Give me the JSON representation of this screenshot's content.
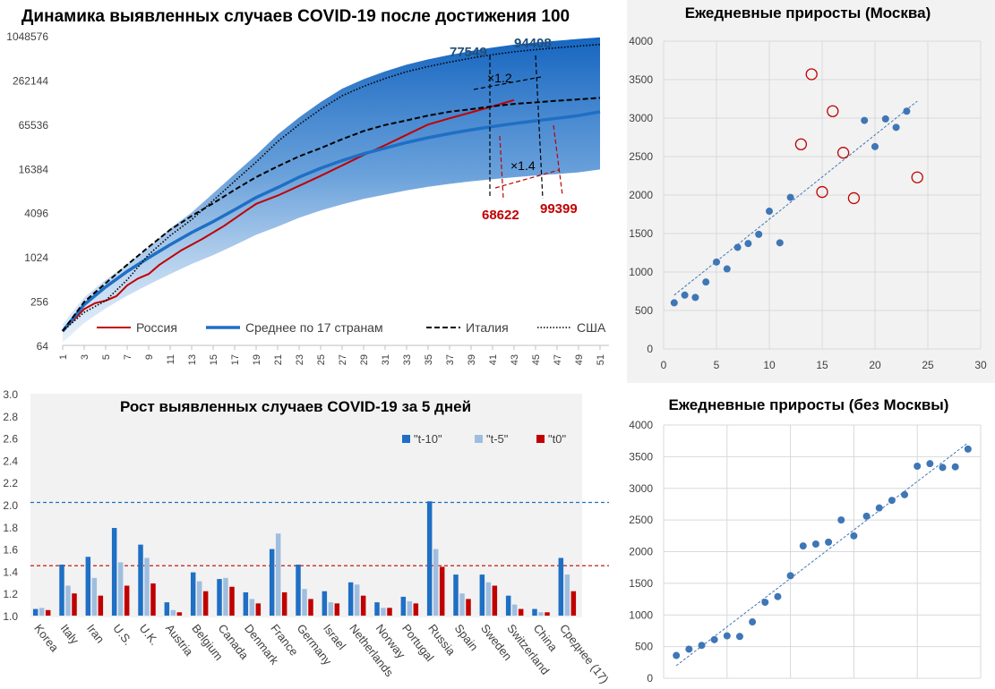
{
  "chart_data": [
    {
      "id": "dynamics",
      "type": "line",
      "title": "Динамика выявленных случаев COVID-19 после достижения 100",
      "y_scale": "log2",
      "yticks": [
        "64",
        "256",
        "1024",
        "4096",
        "16384",
        "65536",
        "262144",
        "1048576"
      ],
      "xticks": [
        "1",
        "3",
        "5",
        "7",
        "9",
        "11",
        "13",
        "15",
        "17",
        "19",
        "21",
        "23",
        "25",
        "27",
        "29",
        "31",
        "33",
        "35",
        "37",
        "39",
        "41",
        "43",
        "45",
        "47",
        "49",
        "51"
      ],
      "xlim": [
        1,
        51
      ],
      "ylim": [
        64,
        1048576
      ],
      "band_color": "#1f6fc4",
      "series": [
        {
          "name": "Россия",
          "color": "#c00000",
          "style": "solid",
          "x": [
            1,
            3,
            4,
            5,
            6,
            7,
            8,
            9,
            10,
            12,
            14,
            16,
            17,
            18,
            19,
            21,
            23,
            25,
            27,
            29,
            31,
            33,
            35,
            37,
            39,
            41,
            43
          ],
          "y": [
            100,
            200,
            240,
            260,
            300,
            420,
            520,
            600,
            800,
            1250,
            1800,
            2700,
            3400,
            4300,
            5400,
            7000,
            9500,
            13000,
            18000,
            25000,
            34000,
            47000,
            65000,
            79000,
            95000,
            115000,
            140000
          ]
        },
        {
          "name": "Среднее по 17 странам",
          "color": "#1f6fc4",
          "style": "solid-thick",
          "x": [
            1,
            3,
            5,
            7,
            9,
            11,
            13,
            15,
            17,
            19,
            21,
            23,
            25,
            27,
            29,
            31,
            33,
            35,
            37,
            39,
            41,
            43,
            45,
            47,
            49,
            51
          ],
          "y": [
            100,
            230,
            400,
            650,
            1000,
            1500,
            2200,
            3100,
            4500,
            6600,
            9000,
            12500,
            16500,
            21000,
            26000,
            31000,
            37000,
            43000,
            49000,
            55000,
            61000,
            67000,
            73000,
            79000,
            86000,
            97000
          ]
        },
        {
          "name": "Италия",
          "color": "#000000",
          "style": "dashed",
          "x": [
            1,
            3,
            5,
            7,
            9,
            11,
            13,
            15,
            17,
            19,
            21,
            23,
            25,
            27,
            29,
            31,
            33,
            35,
            37,
            39,
            41,
            43,
            45,
            47,
            49,
            51
          ],
          "y": [
            100,
            250,
            450,
            800,
            1400,
            2400,
            3700,
            5500,
            8400,
            12500,
            17500,
            24000,
            31000,
            41000,
            53000,
            64000,
            74000,
            86000,
            97000,
            105000,
            115000,
            124000,
            130000,
            137000,
            143000,
            150000
          ]
        },
        {
          "name": "США",
          "color": "#000000",
          "style": "dotted",
          "x": [
            1,
            3,
            5,
            7,
            9,
            11,
            13,
            15,
            17,
            19,
            21,
            23,
            25,
            27,
            29,
            31,
            33,
            35,
            37,
            39,
            41,
            43,
            45,
            47,
            49,
            51
          ],
          "y": [
            100,
            180,
            260,
            500,
            1100,
            2000,
            3300,
            6000,
            11000,
            20000,
            38000,
            65000,
            105000,
            160000,
            215000,
            275000,
            340000,
            400000,
            460000,
            520000,
            580000,
            635000,
            680000,
            720000,
            760000,
            800000
          ]
        }
      ],
      "annotations": [
        {
          "text": "77549",
          "color": "#1f4e79"
        },
        {
          "text": "94408",
          "color": "#1f4e79"
        },
        {
          "text": "×1.2",
          "color": "#000000"
        },
        {
          "text": "×1.4",
          "color": "#000000"
        },
        {
          "text": "68622",
          "color": "#c00000"
        },
        {
          "text": "99399",
          "color": "#c00000"
        }
      ],
      "legend": "bottom-inside"
    },
    {
      "id": "moscow",
      "type": "scatter",
      "title": "Ежедневные приросты (Москва)",
      "xlim": [
        0,
        30
      ],
      "ylim": [
        0,
        4000
      ],
      "xticks": [
        "0",
        "5",
        "10",
        "15",
        "20",
        "25",
        "30"
      ],
      "yticks": [
        "0",
        "500",
        "1000",
        "1500",
        "2000",
        "2500",
        "3000",
        "3500",
        "4000"
      ],
      "point_color": "#3f76b6",
      "outlier_color": "#c00000",
      "points": [
        [
          1,
          600
        ],
        [
          2,
          700
        ],
        [
          3,
          670
        ],
        [
          4,
          870
        ],
        [
          5,
          1130
        ],
        [
          6,
          1040
        ],
        [
          7,
          1320
        ],
        [
          8,
          1370
        ],
        [
          9,
          1490
        ],
        [
          10,
          1790
        ],
        [
          11,
          1380
        ],
        [
          12,
          1970
        ],
        [
          19,
          2970
        ],
        [
          20,
          2630
        ],
        [
          21,
          2990
        ],
        [
          22,
          2880
        ],
        [
          23,
          3090
        ]
      ],
      "outliers": [
        [
          13,
          2660
        ],
        [
          14,
          3570
        ],
        [
          15,
          2040
        ],
        [
          16,
          3090
        ],
        [
          17,
          2550
        ],
        [
          18,
          1960
        ],
        [
          24,
          2230
        ]
      ],
      "trend": [
        [
          1,
          700
        ],
        [
          24,
          3220
        ]
      ]
    },
    {
      "id": "growth5",
      "type": "bar",
      "title": "Рост выявленных случаев COVID-19 за 5 дней",
      "ylim": [
        1.0,
        3.0
      ],
      "yticks": [
        "1.0",
        "1.2",
        "1.4",
        "1.6",
        "1.8",
        "2.0",
        "2.2",
        "2.4",
        "2.6",
        "2.8",
        "3.0"
      ],
      "categories": [
        "Korea",
        "Italy",
        "Iran",
        "U.S.",
        "U.K.",
        "Austria",
        "Belgium",
        "Canada",
        "Denmark",
        "France",
        "Germany",
        "Israel",
        "Netherlands",
        "Norway",
        "Portugal",
        "Russia",
        "Spain",
        "Sweden",
        "Switzerland",
        "China",
        "Среднее (17)"
      ],
      "series": [
        {
          "name": "\"t-10\"",
          "color": "#1f6fc4",
          "values": [
            1.06,
            1.46,
            1.53,
            1.79,
            1.64,
            1.12,
            1.39,
            1.33,
            1.21,
            1.6,
            1.46,
            1.22,
            1.3,
            1.12,
            1.17,
            2.03,
            1.37,
            1.37,
            1.18,
            1.06,
            1.52
          ]
        },
        {
          "name": "\"t-5\"",
          "color": "#9fbedf",
          "values": [
            1.07,
            1.27,
            1.34,
            1.48,
            1.52,
            1.05,
            1.31,
            1.34,
            1.15,
            1.74,
            1.24,
            1.12,
            1.28,
            1.07,
            1.13,
            1.6,
            1.2,
            1.3,
            1.1,
            1.03,
            1.37
          ]
        },
        {
          "name": "\"t0\"",
          "color": "#c00000",
          "values": [
            1.05,
            1.2,
            1.18,
            1.27,
            1.29,
            1.03,
            1.22,
            1.26,
            1.11,
            1.21,
            1.15,
            1.11,
            1.18,
            1.07,
            1.11,
            1.44,
            1.15,
            1.27,
            1.06,
            1.03,
            1.22
          ]
        }
      ],
      "reference_lines": [
        {
          "value": 2.02,
          "color": "#1f6fc4"
        },
        {
          "value": 1.45,
          "color": "#c00000"
        }
      ],
      "legend": "top-right"
    },
    {
      "id": "no_moscow",
      "type": "scatter",
      "title": "Ежедневные приросты (без Москвы)",
      "ylim": [
        0,
        4000
      ],
      "yticks": [
        "0",
        "500",
        "1000",
        "1500",
        "2000",
        "2500",
        "3000",
        "3500",
        "4000"
      ],
      "x_grid_count": 5,
      "point_color": "#3f76b6",
      "points": [
        [
          1,
          360
        ],
        [
          2,
          460
        ],
        [
          3,
          520
        ],
        [
          4,
          610
        ],
        [
          5,
          670
        ],
        [
          6,
          660
        ],
        [
          7,
          890
        ],
        [
          8,
          1200
        ],
        [
          9,
          1290
        ],
        [
          10,
          1620
        ],
        [
          11,
          2090
        ],
        [
          12,
          2120
        ],
        [
          13,
          2150
        ],
        [
          14,
          2500
        ],
        [
          15,
          2250
        ],
        [
          16,
          2560
        ],
        [
          17,
          2690
        ],
        [
          18,
          2810
        ],
        [
          19,
          2900
        ],
        [
          20,
          3350
        ],
        [
          21,
          3390
        ],
        [
          22,
          3330
        ],
        [
          23,
          3340
        ],
        [
          24,
          3620
        ]
      ],
      "trend": [
        [
          1,
          200
        ],
        [
          24,
          3720
        ]
      ]
    }
  ]
}
